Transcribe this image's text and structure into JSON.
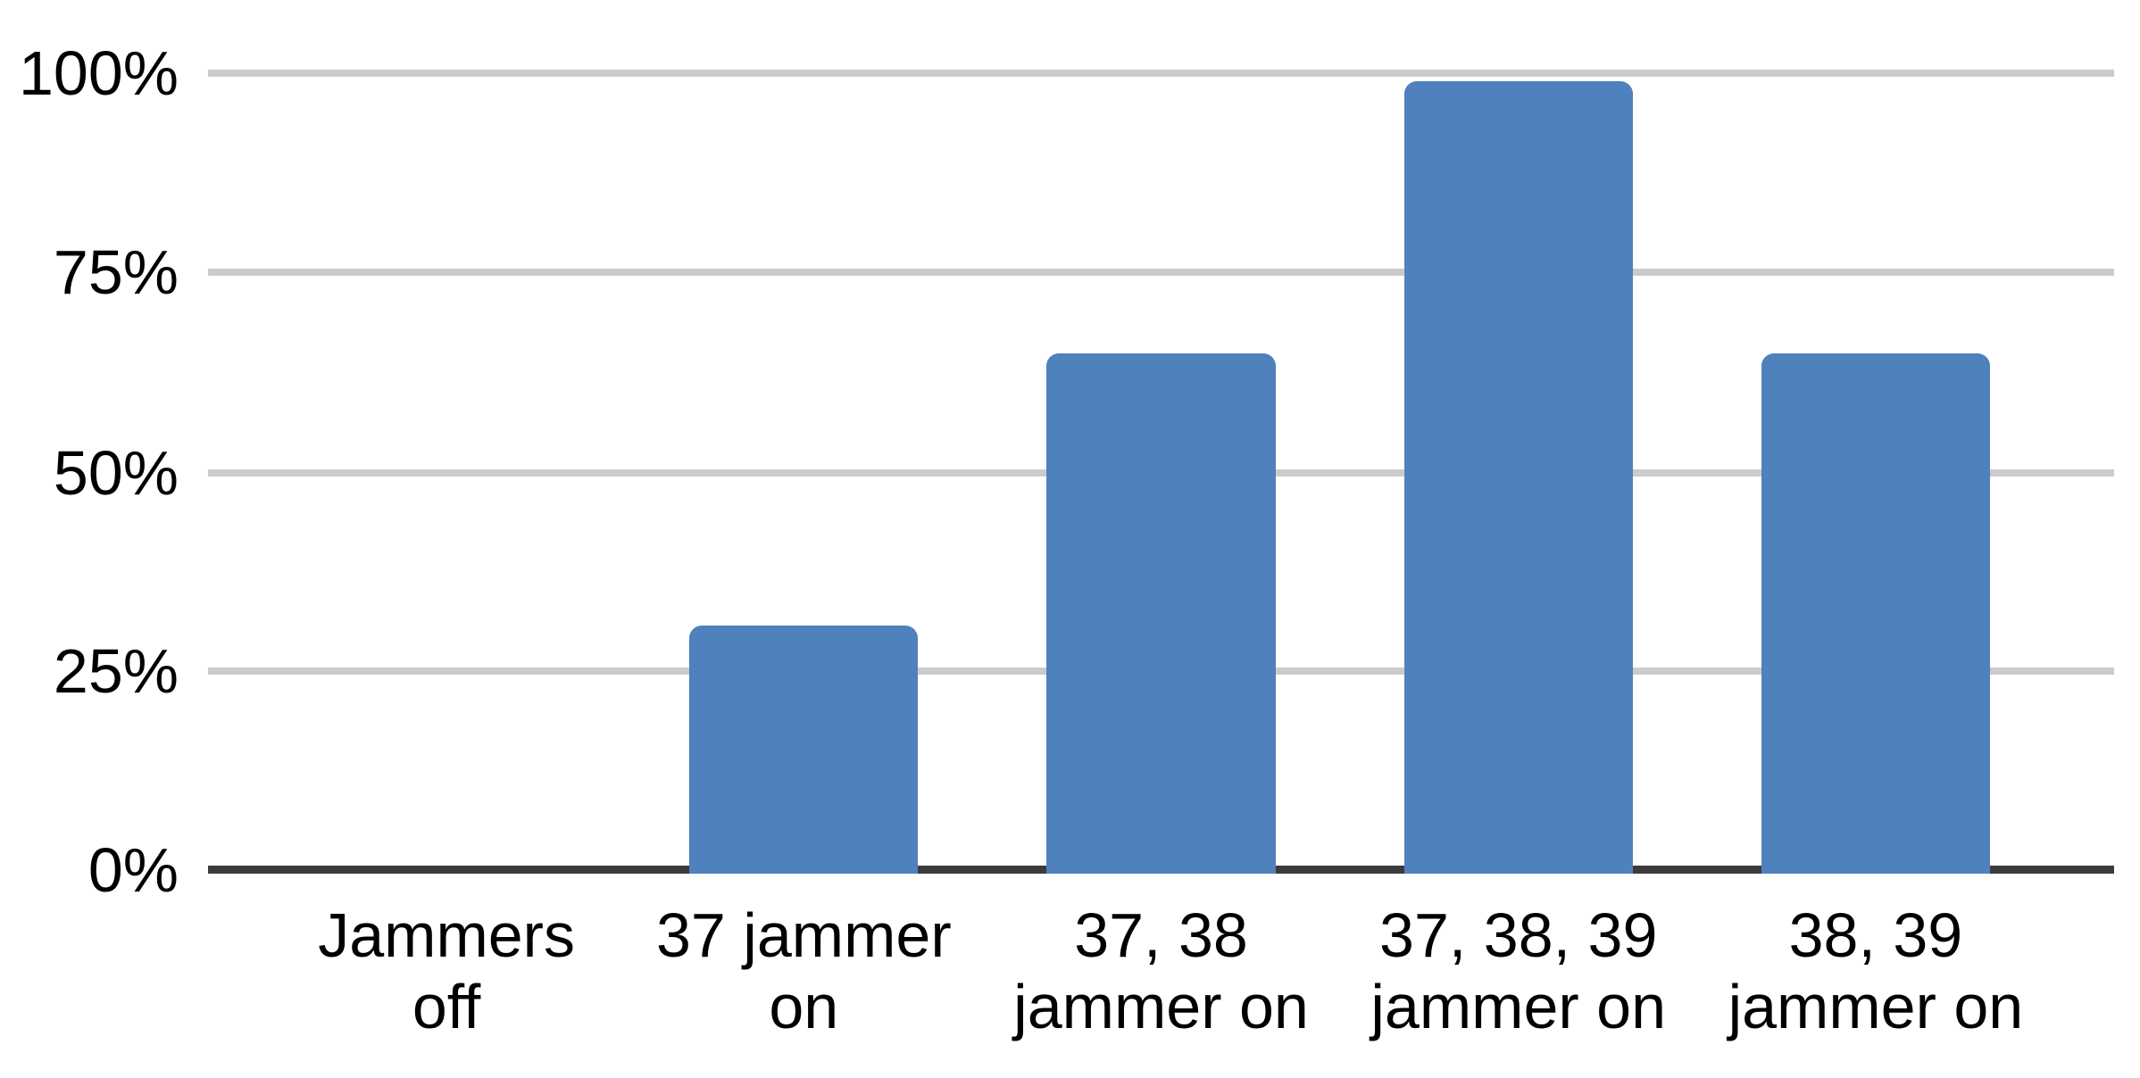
{
  "chart_data": {
    "type": "bar",
    "title": "",
    "xlabel": "",
    "ylabel": "",
    "categories": [
      "Jammers\noff",
      "37 jammer\non",
      "37, 38\njammer on",
      "37, 38, 39\njammer on",
      "38, 39\njammer on"
    ],
    "values": [
      0,
      31,
      65,
      99,
      65
    ],
    "value_unit": "%",
    "yticks": {
      "t100": "100%",
      "t75": "75%",
      "t50": "50%",
      "t25": "25%",
      "t0": "0%"
    },
    "ytick_values": [
      100,
      75,
      50,
      25,
      0
    ],
    "ylim": [
      0,
      100
    ],
    "grid": true,
    "legend": false,
    "colors": {
      "bar": "#4f81bd",
      "gridline": "#cbcbcb",
      "axis": "#3b3b3b",
      "text": "#000000",
      "background": "#ffffff"
    }
  }
}
